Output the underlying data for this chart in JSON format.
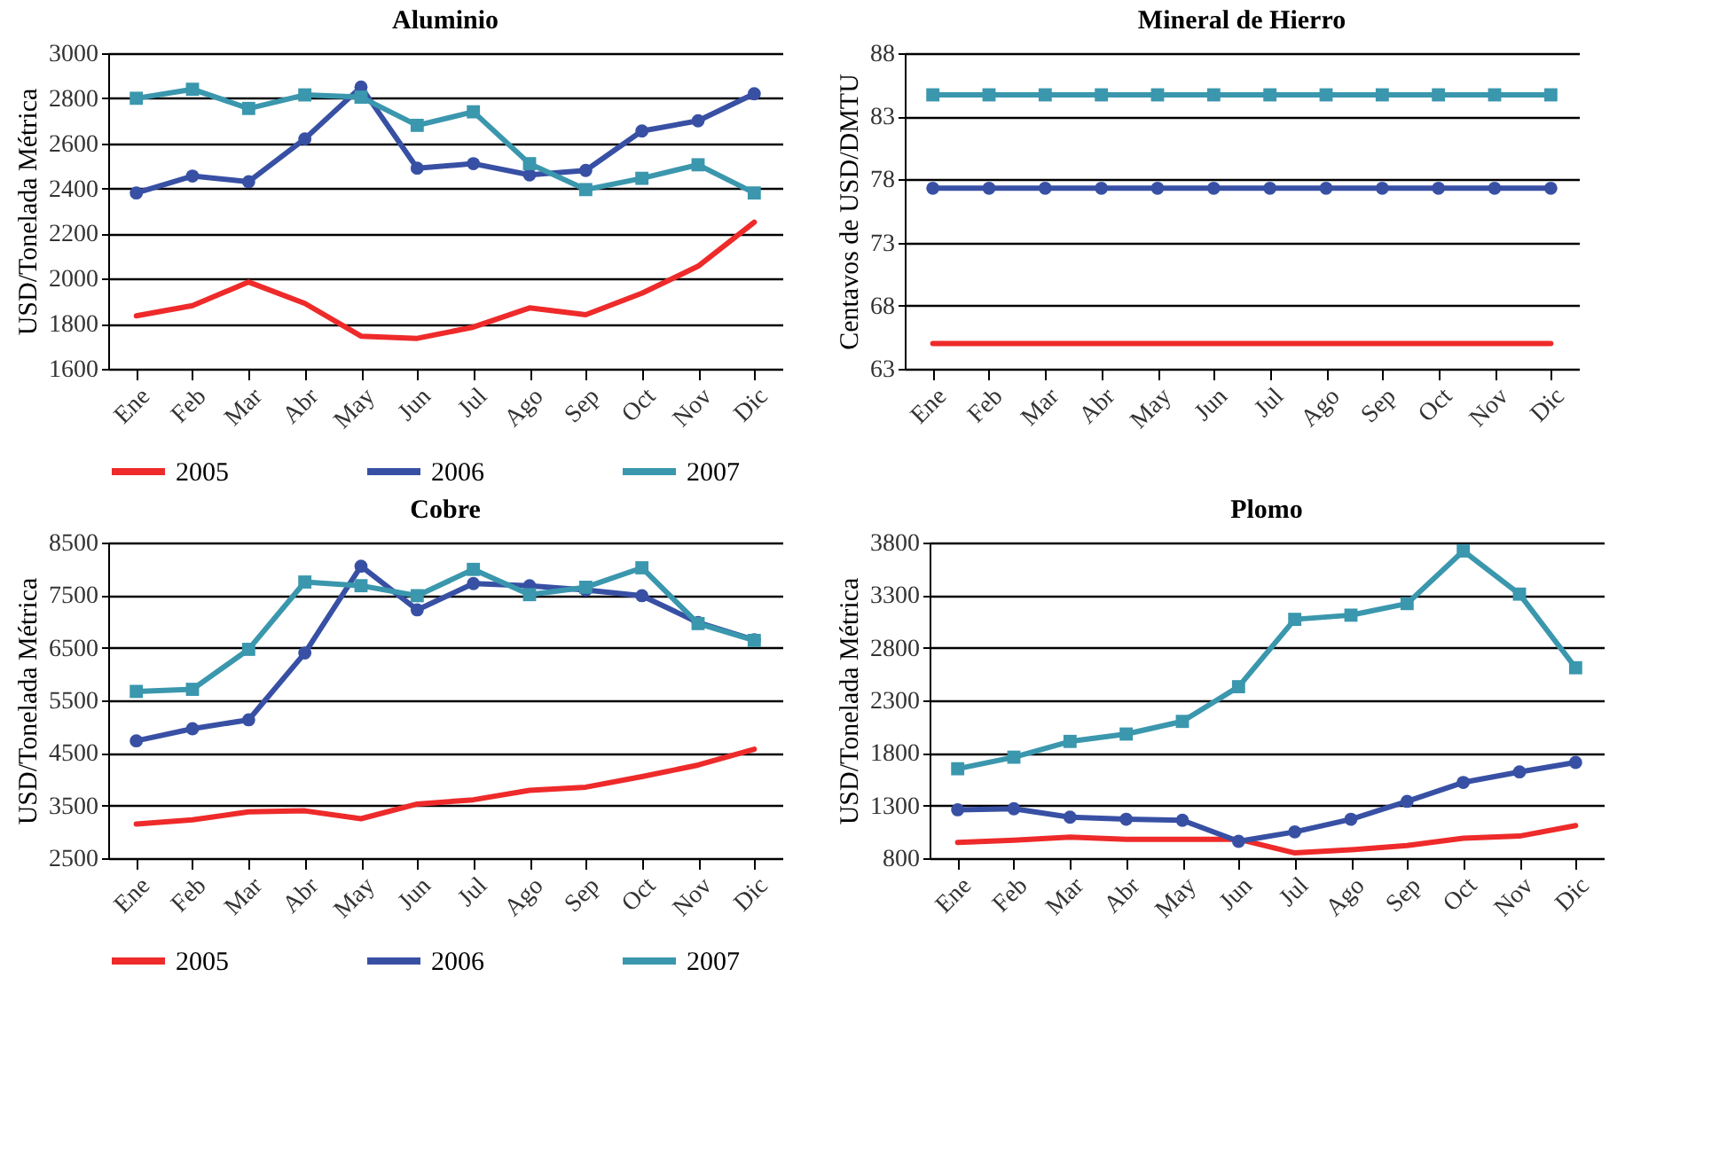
{
  "chart_data": [
    {
      "type": "line",
      "title": "Aluminio",
      "ylabel": "USD/Tonelada Métrica",
      "categories": [
        "Ene",
        "Feb",
        "Mar",
        "Abr",
        "May",
        "Jun",
        "Jul",
        "Ago",
        "Sep",
        "Oct",
        "Nov",
        "Dic"
      ],
      "ylim": [
        1600,
        3000
      ],
      "yticks": [
        1600,
        1800,
        2000,
        2200,
        2400,
        2600,
        2800,
        3000
      ],
      "grid": "y",
      "legend": "bottom",
      "series": [
        {
          "name": "2005",
          "color": "#ee2a2a",
          "marker": "none",
          "values": [
            1835,
            1880,
            1985,
            1890,
            1745,
            1735,
            1785,
            1870,
            1840,
            1935,
            2055,
            2250
          ]
        },
        {
          "name": "2006",
          "color": "#3850a4",
          "marker": "circle",
          "values": [
            2380,
            2455,
            2430,
            2620,
            2850,
            2490,
            2510,
            2460,
            2480,
            2655,
            2700,
            2820
          ]
        },
        {
          "name": "2007",
          "color": "#3a97ad",
          "marker": "square",
          "values": [
            2800,
            2840,
            2755,
            2815,
            2805,
            2680,
            2740,
            2510,
            2395,
            2445,
            2505,
            2380
          ]
        }
      ]
    },
    {
      "type": "line",
      "title": "Mineral de Hierro",
      "ylabel": "Centavos de USD/DMTU",
      "categories": [
        "Ene",
        "Feb",
        "Mar",
        "Abr",
        "May",
        "Jun",
        "Jul",
        "Ago",
        "Sep",
        "Oct",
        "Nov",
        "Dic"
      ],
      "ylim": [
        63,
        88
      ],
      "yticks": [
        63,
        68,
        73,
        78,
        83,
        88
      ],
      "grid": "y",
      "legend": "bottom",
      "series": [
        {
          "name": "2005",
          "color": "#ee2a2a",
          "marker": "none",
          "values": [
            65,
            65,
            65,
            65,
            65,
            65,
            65,
            65,
            65,
            65,
            65,
            65
          ]
        },
        {
          "name": "2006",
          "color": "#3850a4",
          "marker": "circle",
          "values": [
            77.3,
            77.3,
            77.3,
            77.3,
            77.3,
            77.3,
            77.3,
            77.3,
            77.3,
            77.3,
            77.3,
            77.3
          ]
        },
        {
          "name": "2007",
          "color": "#3a97ad",
          "marker": "square",
          "values": [
            84.7,
            84.7,
            84.7,
            84.7,
            84.7,
            84.7,
            84.7,
            84.7,
            84.7,
            84.7,
            84.7,
            84.7
          ]
        }
      ]
    },
    {
      "type": "line",
      "title": "Cobre",
      "ylabel": "USD/Tonelada Métrica",
      "categories": [
        "Ene",
        "Feb",
        "Mar",
        "Abr",
        "May",
        "Jun",
        "Jul",
        "Ago",
        "Sep",
        "Oct",
        "Nov",
        "Dic"
      ],
      "ylim": [
        2500,
        8500
      ],
      "yticks": [
        2500,
        3500,
        4500,
        5500,
        6500,
        7500,
        8500
      ],
      "grid": "y",
      "legend": "bottom",
      "series": [
        {
          "name": "2005",
          "color": "#ee2a2a",
          "marker": "none",
          "values": [
            3150,
            3230,
            3380,
            3400,
            3250,
            3530,
            3610,
            3790,
            3850,
            4050,
            4270,
            4570
          ]
        },
        {
          "name": "2006",
          "color": "#3850a4",
          "marker": "circle",
          "values": [
            4730,
            4960,
            5130,
            6400,
            8050,
            7220,
            7720,
            7680,
            7600,
            7490,
            6980,
            6650
          ]
        },
        {
          "name": "2007",
          "color": "#3a97ad",
          "marker": "square",
          "values": [
            5670,
            5710,
            6470,
            7750,
            7680,
            7490,
            7990,
            7510,
            7650,
            8020,
            6960,
            6640
          ]
        }
      ]
    },
    {
      "type": "line",
      "title": "Plomo",
      "ylabel": "USD/Tonelada Métrica",
      "categories": [
        "Ene",
        "Feb",
        "Mar",
        "Abr",
        "May",
        "Jun",
        "Jul",
        "Ago",
        "Sep",
        "Oct",
        "Nov",
        "Dic"
      ],
      "ylim": [
        800,
        3800
      ],
      "yticks": [
        800,
        1300,
        1800,
        2300,
        2800,
        3300,
        3800
      ],
      "grid": "y",
      "legend": "bottom",
      "series": [
        {
          "name": "2005",
          "color": "#ee2a2a",
          "marker": "none",
          "values": [
            950,
            970,
            1000,
            980,
            980,
            980,
            850,
            880,
            920,
            990,
            1010,
            1110
          ]
        },
        {
          "name": "2006",
          "color": "#3850a4",
          "marker": "circle",
          "values": [
            1260,
            1270,
            1190,
            1170,
            1160,
            960,
            1050,
            1170,
            1340,
            1520,
            1620,
            1710
          ]
        },
        {
          "name": "2007",
          "color": "#3a97ad",
          "marker": "square",
          "values": [
            1650,
            1760,
            1910,
            1980,
            2100,
            2430,
            3070,
            3110,
            3220,
            3720,
            3310,
            2610
          ]
        }
      ]
    }
  ]
}
